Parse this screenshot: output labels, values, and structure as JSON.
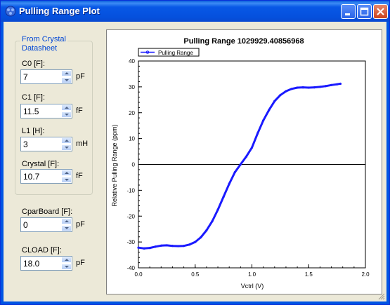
{
  "window": {
    "title": "Pulling Range Plot",
    "accent": "#0054e3",
    "client_bg": "#ece9d8"
  },
  "crystal_group": {
    "title_line1": "From Crystal",
    "title_line2": "Datasheet",
    "fields": [
      {
        "label": "C0 [F]:",
        "value": "7",
        "unit": "pF"
      },
      {
        "label": "C1 [F]:",
        "value": "11.5",
        "unit": "fF"
      },
      {
        "label": "L1 [H]:",
        "value": "3",
        "unit": "mH"
      },
      {
        "label": "Crystal [F]:",
        "value": "10.7",
        "unit": "fF"
      }
    ]
  },
  "board_fields": [
    {
      "label": "CparBoard [F]:",
      "value": "0",
      "unit": "pF"
    },
    {
      "label": "CLOAD [F]:",
      "value": "18.0",
      "unit": "pF"
    }
  ],
  "chart_data": {
    "type": "line",
    "title": "Pulling Range 1029929.40856968",
    "xlabel": "Vctrl (V)",
    "ylabel": "Relative Pulling Range (ppm)",
    "xlim": [
      0.0,
      2.0
    ],
    "ylim": [
      -40,
      40
    ],
    "xticks": [
      "0.0",
      "0.5",
      "1.0",
      "1.5",
      "2.0"
    ],
    "yticks": [
      "40",
      "30",
      "20",
      "10",
      "0",
      "-10",
      "-20",
      "-30",
      "-40"
    ],
    "legend": "top-left",
    "grid": false,
    "series": [
      {
        "name": "Pulling Range",
        "color": "#1a1aff",
        "x": [
          0.0,
          0.05,
          0.1,
          0.15,
          0.2,
          0.25,
          0.3,
          0.35,
          0.4,
          0.45,
          0.5,
          0.55,
          0.6,
          0.65,
          0.7,
          0.75,
          0.8,
          0.85,
          0.9,
          0.95,
          1.0,
          1.05,
          1.1,
          1.15,
          1.2,
          1.25,
          1.3,
          1.35,
          1.4,
          1.45,
          1.5,
          1.55,
          1.6,
          1.65,
          1.7,
          1.75,
          1.78
        ],
        "y": [
          -32.2,
          -32.5,
          -32.3,
          -31.8,
          -31.4,
          -31.3,
          -31.5,
          -31.6,
          -31.5,
          -31.0,
          -30.0,
          -28.2,
          -25.5,
          -22.0,
          -17.5,
          -12.5,
          -7.5,
          -3.0,
          0.0,
          3.0,
          6.5,
          12.0,
          17.0,
          21.0,
          24.5,
          26.8,
          28.3,
          29.2,
          29.7,
          29.8,
          29.7,
          29.8,
          30.0,
          30.3,
          30.7,
          31.0,
          31.2
        ]
      }
    ]
  }
}
